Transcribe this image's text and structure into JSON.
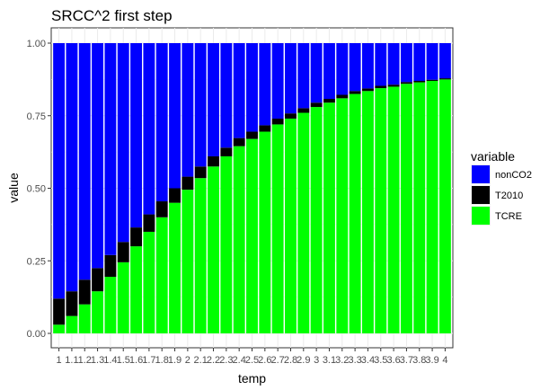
{
  "chart_data": {
    "type": "bar",
    "stacked": true,
    "title": "SRCC^2 first step",
    "xlabel": "temp",
    "ylabel": "value",
    "ylim": [
      0,
      1
    ],
    "yticks": [
      "0.00",
      "0.25",
      "0.50",
      "0.75",
      "1.00"
    ],
    "legend_title": "variable",
    "legend_position": "right",
    "categories": [
      "1",
      "1.1",
      "1.2",
      "1.3",
      "1.4",
      "1.5",
      "1.6",
      "1.7",
      "1.8",
      "1.9",
      "2",
      "2.1",
      "2.2",
      "2.3",
      "2.4",
      "2.5",
      "2.6",
      "2.7",
      "2.8",
      "2.9",
      "3",
      "3.1",
      "3.2",
      "3.3",
      "3.4",
      "3.5",
      "3.6",
      "3.7",
      "3.8",
      "3.9",
      "4"
    ],
    "series": [
      {
        "name": "TCRE",
        "color": "#00ff00",
        "values": [
          0.03,
          0.06,
          0.1,
          0.145,
          0.195,
          0.245,
          0.3,
          0.35,
          0.4,
          0.45,
          0.495,
          0.535,
          0.575,
          0.61,
          0.645,
          0.67,
          0.695,
          0.72,
          0.74,
          0.76,
          0.78,
          0.795,
          0.81,
          0.825,
          0.835,
          0.845,
          0.85,
          0.86,
          0.865,
          0.87,
          0.875
        ]
      },
      {
        "name": "T2010",
        "color": "#000000",
        "values": [
          0.09,
          0.085,
          0.085,
          0.08,
          0.075,
          0.07,
          0.065,
          0.06,
          0.055,
          0.05,
          0.045,
          0.04,
          0.035,
          0.03,
          0.028,
          0.025,
          0.022,
          0.02,
          0.018,
          0.016,
          0.015,
          0.013,
          0.012,
          0.01,
          0.009,
          0.008,
          0.007,
          0.006,
          0.005,
          0.004,
          0.004
        ]
      },
      {
        "name": "nonCO2",
        "color": "#0000ff",
        "values": [
          0.88,
          0.855,
          0.815,
          0.775,
          0.73,
          0.685,
          0.635,
          0.59,
          0.545,
          0.5,
          0.46,
          0.425,
          0.39,
          0.36,
          0.327,
          0.305,
          0.283,
          0.26,
          0.242,
          0.224,
          0.205,
          0.192,
          0.178,
          0.165,
          0.156,
          0.147,
          0.143,
          0.134,
          0.13,
          0.126,
          0.121
        ]
      }
    ],
    "legend_order": [
      "nonCO2",
      "T2010",
      "TCRE"
    ]
  }
}
